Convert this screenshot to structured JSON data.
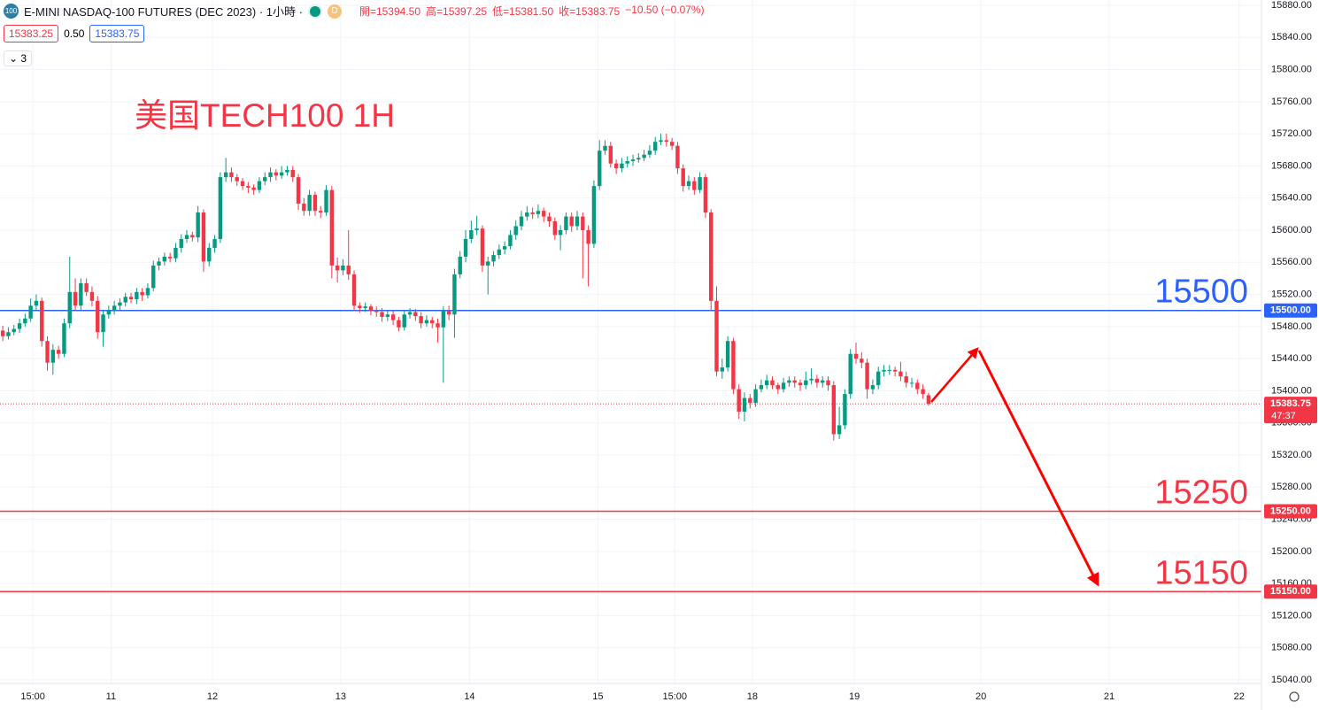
{
  "chart_data": {
    "type": "candlestick",
    "header": {
      "logo": "100",
      "title": "E-MINI NASDAQ-100 FUTURES (DEC 2023) · 1小時 ·",
      "badge": "D",
      "ohlc": [
        "開=15394.50",
        "高=15397.25",
        "低=15381.50",
        "收=15383.75",
        "−10.50 (−0.07%)"
      ],
      "bid": "15383.25",
      "spread": "0.50",
      "ask": "15383.75",
      "indicators": "3"
    },
    "annotation": "美国TECH100 1H",
    "up_color": "#089981",
    "down_color": "#f23645",
    "xlim": [
      -0.5,
      225.7
    ],
    "xticks": [
      {
        "value": 5.4,
        "label": "15:00"
      },
      {
        "value": 19.4,
        "label": "11"
      },
      {
        "value": 37.6,
        "label": "12"
      },
      {
        "value": 60.6,
        "label": "13"
      },
      {
        "value": 83.7,
        "label": "14"
      },
      {
        "value": 106.7,
        "label": "15"
      },
      {
        "value": 120.5,
        "label": "15:00"
      },
      {
        "value": 134.4,
        "label": "18"
      },
      {
        "value": 152.7,
        "label": "19"
      },
      {
        "value": 175.4,
        "label": "20"
      },
      {
        "value": 198.4,
        "label": "21"
      },
      {
        "value": 221.7,
        "label": "22"
      }
    ],
    "ylim": [
      15035.6,
      15886.6
    ],
    "yticks": [
      {
        "value": 15880,
        "label": "15880.00"
      },
      {
        "value": 15840,
        "label": "15840.00"
      },
      {
        "value": 15800,
        "label": "15800.00"
      },
      {
        "value": 15760,
        "label": "15760.00"
      },
      {
        "value": 15720,
        "label": "15720.00"
      },
      {
        "value": 15680,
        "label": "15680.00"
      },
      {
        "value": 15640,
        "label": "15640.00"
      },
      {
        "value": 15600,
        "label": "15600.00"
      },
      {
        "value": 15560,
        "label": "15560.00"
      },
      {
        "value": 15520,
        "label": "15520.00"
      },
      {
        "value": 15480,
        "label": "15480.00"
      },
      {
        "value": 15440,
        "label": "15440.00"
      },
      {
        "value": 15400,
        "label": "15400.00"
      },
      {
        "value": 15360,
        "label": "15360.00"
      },
      {
        "value": 15320,
        "label": "15320.00"
      },
      {
        "value": 15280,
        "label": "15280.00"
      },
      {
        "value": 15240,
        "label": "15240.00"
      },
      {
        "value": 15200,
        "label": "15200.00"
      },
      {
        "value": 15160,
        "label": "15160.00"
      },
      {
        "value": 15120,
        "label": "15120.00"
      },
      {
        "value": 15080,
        "label": "15080.00"
      },
      {
        "value": 15040,
        "label": "15040.00"
      }
    ],
    "grid": true,
    "levels": [
      {
        "value": 15500,
        "label": "15500",
        "tag": "15500.00",
        "color": "#2962ff"
      },
      {
        "value": 15250,
        "label": "15250",
        "tag": "15250.00",
        "color": "#f23645"
      },
      {
        "value": 15150,
        "label": "15150",
        "tag": "15150.00",
        "color": "#f23645"
      }
    ],
    "last": {
      "value": 15383.75,
      "tag": "15383.75",
      "countdown": "47:37",
      "color": "#f23645"
    },
    "candles": [
      [
        15475,
        15481,
        15462,
        15468
      ],
      [
        15468,
        15479,
        15464,
        15473
      ],
      [
        15473,
        15482,
        15469,
        15477
      ],
      [
        15477,
        15490,
        15472,
        15484
      ],
      [
        15484,
        15496,
        15480,
        15490
      ],
      [
        15490,
        15515,
        15486,
        15506
      ],
      [
        15506,
        15520,
        15500,
        15512
      ],
      [
        15512,
        15516,
        15455,
        15462
      ],
      [
        15462,
        15468,
        15425,
        15435
      ],
      [
        15435,
        15458,
        15420,
        15451
      ],
      [
        15451,
        15456,
        15440,
        15446
      ],
      [
        15446,
        15490,
        15442,
        15484
      ],
      [
        15484,
        15567,
        15478,
        15523
      ],
      [
        15523,
        15540,
        15500,
        15506
      ],
      [
        15506,
        15540,
        15500,
        15534
      ],
      [
        15534,
        15540,
        15518,
        15523
      ],
      [
        15523,
        15530,
        15505,
        15512
      ],
      [
        15512,
        15518,
        15465,
        15473
      ],
      [
        15473,
        15500,
        15455,
        15495
      ],
      [
        15495,
        15506,
        15490,
        15500
      ],
      [
        15500,
        15512,
        15495,
        15506
      ],
      [
        15506,
        15515,
        15500,
        15510
      ],
      [
        15510,
        15522,
        15505,
        15517
      ],
      [
        15517,
        15522,
        15509,
        15514
      ],
      [
        15514,
        15528,
        15508,
        15523
      ],
      [
        15523,
        15528,
        15512,
        15519
      ],
      [
        15519,
        15534,
        15515,
        15528
      ],
      [
        15528,
        15562,
        15524,
        15556
      ],
      [
        15556,
        15566,
        15550,
        15561
      ],
      [
        15561,
        15572,
        15556,
        15567
      ],
      [
        15567,
        15572,
        15560,
        15565
      ],
      [
        15565,
        15584,
        15560,
        15578
      ],
      [
        15578,
        15595,
        15572,
        15589
      ],
      [
        15589,
        15600,
        15584,
        15594
      ],
      [
        15594,
        15598,
        15586,
        15591
      ],
      [
        15591,
        15630,
        15585,
        15622
      ],
      [
        15622,
        15626,
        15548,
        15561
      ],
      [
        15561,
        15584,
        15555,
        15578
      ],
      [
        15578,
        15594,
        15572,
        15589
      ],
      [
        15589,
        15672,
        15584,
        15666
      ],
      [
        15666,
        15690,
        15660,
        15672
      ],
      [
        15672,
        15678,
        15660,
        15666
      ],
      [
        15666,
        15670,
        15655,
        15661
      ],
      [
        15661,
        15665,
        15650,
        15655
      ],
      [
        15655,
        15660,
        15646,
        15653
      ],
      [
        15653,
        15657,
        15644,
        15650
      ],
      [
        15650,
        15666,
        15646,
        15661
      ],
      [
        15661,
        15672,
        15656,
        15666
      ],
      [
        15666,
        15678,
        15660,
        15672
      ],
      [
        15672,
        15676,
        15662,
        15668
      ],
      [
        15668,
        15680,
        15664,
        15672
      ],
      [
        15672,
        15680,
        15668,
        15675
      ],
      [
        15675,
        15680,
        15660,
        15666
      ],
      [
        15666,
        15670,
        15625,
        15633
      ],
      [
        15633,
        15640,
        15618,
        15624
      ],
      [
        15624,
        15650,
        15618,
        15644
      ],
      [
        15644,
        15648,
        15618,
        15624
      ],
      [
        15624,
        15630,
        15615,
        15622
      ],
      [
        15622,
        15656,
        15618,
        15650
      ],
      [
        15650,
        15655,
        15540,
        15556
      ],
      [
        15556,
        15566,
        15535,
        15550
      ],
      [
        15550,
        15564,
        15544,
        15556
      ],
      [
        15556,
        15600,
        15538,
        15545
      ],
      [
        15545,
        15550,
        15500,
        15506
      ],
      [
        15506,
        15510,
        15497,
        15503
      ],
      [
        15503,
        15510,
        15498,
        15505
      ],
      [
        15505,
        15508,
        15494,
        15500
      ],
      [
        15500,
        15505,
        15492,
        15498
      ],
      [
        15498,
        15503,
        15486,
        15492
      ],
      [
        15492,
        15500,
        15487,
        15495
      ],
      [
        15495,
        15500,
        15482,
        15488
      ],
      [
        15488,
        15492,
        15474,
        15479
      ],
      [
        15479,
        15500,
        15475,
        15495
      ],
      [
        15495,
        15503,
        15490,
        15498
      ],
      [
        15498,
        15502,
        15487,
        15493
      ],
      [
        15493,
        15498,
        15478,
        15484
      ],
      [
        15484,
        15494,
        15480,
        15488
      ],
      [
        15488,
        15492,
        15478,
        15484
      ],
      [
        15484,
        15490,
        15460,
        15479
      ],
      [
        15479,
        15505,
        15410,
        15500
      ],
      [
        15500,
        15506,
        15488,
        15495
      ],
      [
        15495,
        15552,
        15466,
        15545
      ],
      [
        15545,
        15574,
        15540,
        15567
      ],
      [
        15567,
        15600,
        15560,
        15589
      ],
      [
        15589,
        15612,
        15584,
        15600
      ],
      [
        15600,
        15618,
        15594,
        15602
      ],
      [
        15602,
        15606,
        15548,
        15556
      ],
      [
        15556,
        15567,
        15520,
        15561
      ],
      [
        15561,
        15574,
        15555,
        15569
      ],
      [
        15569,
        15582,
        15564,
        15576
      ],
      [
        15576,
        15586,
        15570,
        15580
      ],
      [
        15580,
        15600,
        15576,
        15594
      ],
      [
        15594,
        15612,
        15588,
        15605
      ],
      [
        15605,
        15624,
        15600,
        15617
      ],
      [
        15617,
        15630,
        15612,
        15622
      ],
      [
        15622,
        15628,
        15614,
        15620
      ],
      [
        15620,
        15632,
        15615,
        15624
      ],
      [
        15624,
        15628,
        15610,
        15617
      ],
      [
        15617,
        15622,
        15604,
        15611
      ],
      [
        15611,
        15616,
        15588,
        15594
      ],
      [
        15594,
        15606,
        15575,
        15600
      ],
      [
        15600,
        15622,
        15595,
        15617
      ],
      [
        15617,
        15622,
        15598,
        15605
      ],
      [
        15605,
        15624,
        15600,
        15617
      ],
      [
        15617,
        15622,
        15540,
        15600
      ],
      [
        15600,
        15606,
        15530,
        15583
      ],
      [
        15583,
        15662,
        15578,
        15655
      ],
      [
        15655,
        15712,
        15650,
        15699
      ],
      [
        15699,
        15712,
        15694,
        15705
      ],
      [
        15705,
        15710,
        15678,
        15683
      ],
      [
        15683,
        15688,
        15670,
        15677
      ],
      [
        15677,
        15690,
        15672,
        15683
      ],
      [
        15683,
        15692,
        15678,
        15686
      ],
      [
        15686,
        15694,
        15680,
        15688
      ],
      [
        15688,
        15696,
        15684,
        15690
      ],
      [
        15690,
        15700,
        15686,
        15694
      ],
      [
        15694,
        15706,
        15690,
        15699
      ],
      [
        15699,
        15716,
        15694,
        15710
      ],
      [
        15710,
        15720,
        15706,
        15712
      ],
      [
        15712,
        15720,
        15704,
        15710
      ],
      [
        15710,
        15715,
        15700,
        15705
      ],
      [
        15705,
        15710,
        15670,
        15677
      ],
      [
        15677,
        15682,
        15648,
        15655
      ],
      [
        15655,
        15668,
        15650,
        15661
      ],
      [
        15661,
        15666,
        15644,
        15650
      ],
      [
        15650,
        15672,
        15646,
        15666
      ],
      [
        15666,
        15670,
        15615,
        15622
      ],
      [
        15622,
        15626,
        15500,
        15512
      ],
      [
        15512,
        15530,
        15418,
        15424
      ],
      [
        15424,
        15440,
        15415,
        15429
      ],
      [
        15429,
        15468,
        15424,
        15462
      ],
      [
        15462,
        15466,
        15396,
        15402
      ],
      [
        15402,
        15408,
        15365,
        15374
      ],
      [
        15374,
        15398,
        15362,
        15391
      ],
      [
        15391,
        15396,
        15378,
        15385
      ],
      [
        15385,
        15408,
        15380,
        15402
      ],
      [
        15402,
        15414,
        15398,
        15407
      ],
      [
        15407,
        15420,
        15402,
        15413
      ],
      [
        15413,
        15418,
        15402,
        15407
      ],
      [
        15407,
        15410,
        15396,
        15402
      ],
      [
        15402,
        15416,
        15398,
        15410
      ],
      [
        15410,
        15418,
        15405,
        15413
      ],
      [
        15413,
        15418,
        15404,
        15410
      ],
      [
        15410,
        15414,
        15400,
        15407
      ],
      [
        15407,
        15424,
        15402,
        15413
      ],
      [
        15413,
        15428,
        15408,
        15415
      ],
      [
        15415,
        15420,
        15404,
        15410
      ],
      [
        15410,
        15418,
        15404,
        15413
      ],
      [
        15413,
        15418,
        15400,
        15407
      ],
      [
        15407,
        15412,
        15338,
        15346
      ],
      [
        15346,
        15380,
        15340,
        15357
      ],
      [
        15357,
        15402,
        15352,
        15396
      ],
      [
        15396,
        15452,
        15390,
        15446
      ],
      [
        15446,
        15460,
        15434,
        15440
      ],
      [
        15440,
        15448,
        15428,
        15435
      ],
      [
        15435,
        15440,
        15390,
        15402
      ],
      [
        15402,
        15414,
        15396,
        15407
      ],
      [
        15407,
        15430,
        15402,
        15424
      ],
      [
        15424,
        15432,
        15418,
        15426
      ],
      [
        15426,
        15432,
        15420,
        15426
      ],
      [
        15426,
        15430,
        15418,
        15424
      ],
      [
        15424,
        15436,
        15412,
        15418
      ],
      [
        15418,
        15424,
        15404,
        15410
      ],
      [
        15410,
        15416,
        15404,
        15410
      ],
      [
        15410,
        15414,
        15396,
        15402
      ],
      [
        15402,
        15408,
        15390,
        15396
      ],
      [
        15394.5,
        15397.25,
        15381.5,
        15383.75
      ]
    ]
  }
}
